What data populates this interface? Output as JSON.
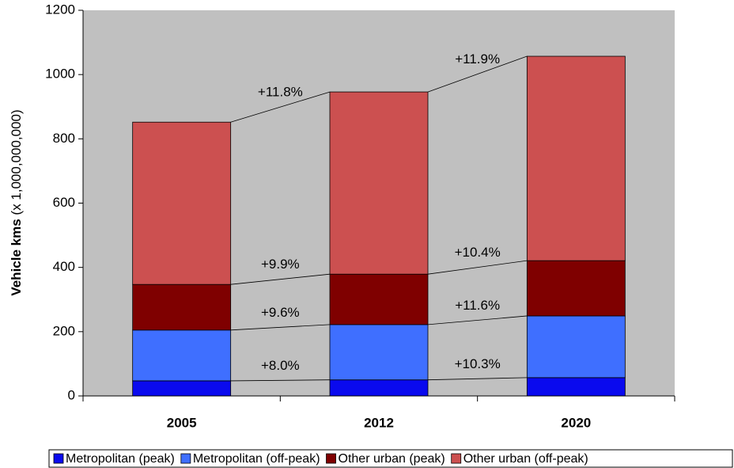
{
  "chart_data": {
    "type": "stacked_bar",
    "ylabel": [
      "Vehicle kms",
      "(x 1,000,000,000)"
    ],
    "categories": [
      "2005",
      "2012",
      "2020"
    ],
    "series": [
      {
        "name": "Metropolitan (peak)",
        "color": "#0a0aee",
        "values": [
          47,
          50,
          57
        ]
      },
      {
        "name": "Metropolitan (off-peak)",
        "color": "#3f6fff",
        "values": [
          158,
          172,
          192
        ]
      },
      {
        "name": "Other urban (peak)",
        "color": "#7f0000",
        "values": [
          142,
          157,
          172
        ]
      },
      {
        "name": "Other urban (off-peak)",
        "color": "#cc5050",
        "values": [
          505,
          567,
          636
        ]
      }
    ],
    "annotations": [
      [
        "+8.0%",
        "+9.6%",
        "+9.9%",
        "+11.8%"
      ],
      [
        "+10.3%",
        "+11.6%",
        "+10.4%",
        "+11.9%"
      ]
    ],
    "ylim": [
      0,
      1200
    ],
    "yticks": [
      0,
      200,
      400,
      600,
      800,
      1000,
      1200
    ],
    "plot_color": "#c0c0c0"
  }
}
